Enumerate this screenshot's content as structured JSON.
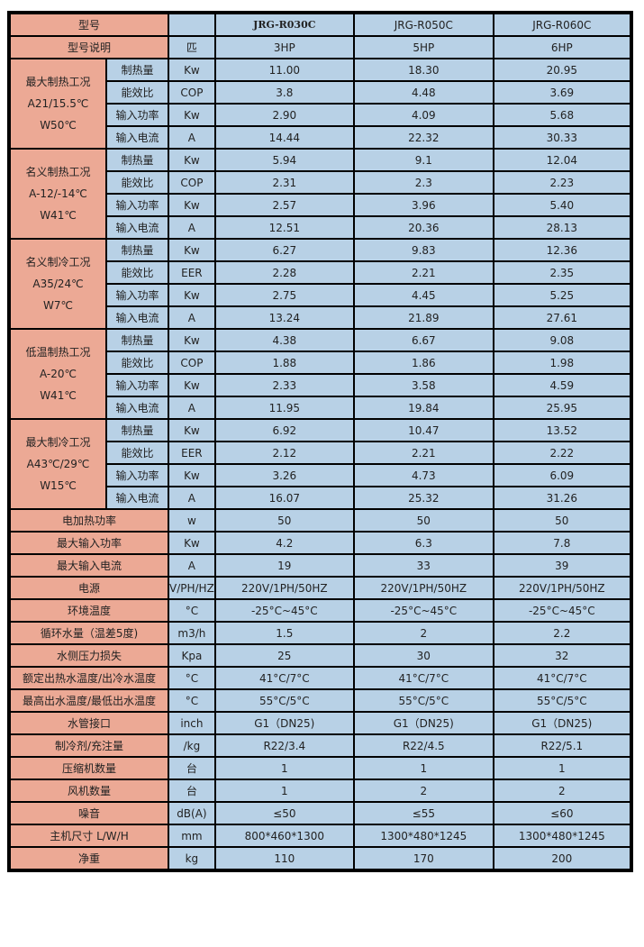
{
  "header": {
    "label": "型号",
    "unit": "",
    "models": [
      "JRG-R030C",
      "JRG-R050C",
      "JRG-R060C"
    ]
  },
  "desc": {
    "label": "型号说明",
    "unit": "匹",
    "values": [
      "3HP",
      "5HP",
      "6HP"
    ]
  },
  "groups": [
    {
      "lines": [
        "最大制热工况",
        "A21/15.5℃",
        "W50℃"
      ],
      "rows": [
        {
          "label": "制热量",
          "unit": "Kw",
          "values": [
            "11.00",
            "18.30",
            "20.95"
          ]
        },
        {
          "label": "能效比",
          "unit": "COP",
          "values": [
            "3.8",
            "4.48",
            "3.69"
          ]
        },
        {
          "label": "输入功率",
          "unit": "Kw",
          "values": [
            "2.90",
            "4.09",
            "5.68"
          ]
        },
        {
          "label": "输入电流",
          "unit": "A",
          "values": [
            "14.44",
            "22.32",
            "30.33"
          ]
        }
      ]
    },
    {
      "lines": [
        "名义制热工况",
        "A-12/-14℃",
        "W41℃"
      ],
      "rows": [
        {
          "label": "制热量",
          "unit": "Kw",
          "values": [
            "5.94",
            "9.1",
            "12.04"
          ]
        },
        {
          "label": "能效比",
          "unit": "COP",
          "values": [
            "2.31",
            "2.3",
            "2.23"
          ]
        },
        {
          "label": "输入功率",
          "unit": "Kw",
          "values": [
            "2.57",
            "3.96",
            "5.40"
          ]
        },
        {
          "label": "输入电流",
          "unit": "A",
          "values": [
            "12.51",
            "20.36",
            "28.13"
          ]
        }
      ]
    },
    {
      "lines": [
        "名义制冷工况",
        "A35/24℃",
        "W7℃"
      ],
      "rows": [
        {
          "label": "制热量",
          "unit": "Kw",
          "values": [
            "6.27",
            "9.83",
            "12.36"
          ]
        },
        {
          "label": "能效比",
          "unit": "EER",
          "values": [
            "2.28",
            "2.21",
            "2.35"
          ]
        },
        {
          "label": "输入功率",
          "unit": "Kw",
          "values": [
            "2.75",
            "4.45",
            "5.25"
          ]
        },
        {
          "label": "输入电流",
          "unit": "A",
          "values": [
            "13.24",
            "21.89",
            "27.61"
          ]
        }
      ]
    },
    {
      "lines": [
        "低温制热工况",
        "A-20℃",
        "W41℃"
      ],
      "rows": [
        {
          "label": "制热量",
          "unit": "Kw",
          "values": [
            "4.38",
            "6.67",
            "9.08"
          ]
        },
        {
          "label": "能效比",
          "unit": "COP",
          "values": [
            "1.88",
            "1.86",
            "1.98"
          ]
        },
        {
          "label": "输入功率",
          "unit": "Kw",
          "values": [
            "2.33",
            "3.58",
            "4.59"
          ]
        },
        {
          "label": "输入电流",
          "unit": "A",
          "values": [
            "11.95",
            "19.84",
            "25.95"
          ]
        }
      ]
    },
    {
      "lines": [
        "最大制冷工况",
        "A43℃/29℃",
        "W15℃"
      ],
      "rows": [
        {
          "label": "制热量",
          "unit": "Kw",
          "values": [
            "6.92",
            "10.47",
            "13.52"
          ]
        },
        {
          "label": "能效比",
          "unit": "EER",
          "values": [
            "2.12",
            "2.21",
            "2.22"
          ]
        },
        {
          "label": "输入功率",
          "unit": "Kw",
          "values": [
            "3.26",
            "4.73",
            "6.09"
          ]
        },
        {
          "label": "输入电流",
          "unit": "A",
          "values": [
            "16.07",
            "25.32",
            "31.26"
          ]
        }
      ]
    }
  ],
  "specs": [
    {
      "label": "电加热功率",
      "unit": "w",
      "values": [
        "50",
        "50",
        "50"
      ]
    },
    {
      "label": "最大输入功率",
      "unit": "Kw",
      "values": [
        "4.2",
        "6.3",
        "7.8"
      ]
    },
    {
      "label": "最大输入电流",
      "unit": "A",
      "values": [
        "19",
        "33",
        "39"
      ]
    },
    {
      "label": "电源",
      "unit": "V/PH/HZ",
      "values": [
        "220V/1PH/50HZ",
        "220V/1PH/50HZ",
        "220V/1PH/50HZ"
      ]
    },
    {
      "label": "环境温度",
      "unit": "°C",
      "values": [
        "-25°C~45°C",
        "-25°C~45°C",
        "-25°C~45°C"
      ]
    },
    {
      "label": "循环水量（温差5度)",
      "unit": "m3/h",
      "values": [
        "1.5",
        "2",
        "2.2"
      ]
    },
    {
      "label": "水侧压力损失",
      "unit": "Kpa",
      "values": [
        "25",
        "30",
        "32"
      ]
    },
    {
      "label": "额定出热水温度/出冷水温度",
      "unit": "°C",
      "values": [
        "41°C/7°C",
        "41°C/7°C",
        "41°C/7°C"
      ]
    },
    {
      "label": "最高出水温度/最低出水温度",
      "unit": "°C",
      "values": [
        "55°C/5°C",
        "55°C/5°C",
        "55°C/5°C"
      ]
    },
    {
      "label": "水管接口",
      "unit": "inch",
      "values": [
        "G1（DN25)",
        "G1（DN25)",
        "G1（DN25)"
      ]
    },
    {
      "label": "制冷剂/充注量",
      "unit": "/kg",
      "values": [
        "R22/3.4",
        "R22/4.5",
        "R22/5.1"
      ]
    },
    {
      "label": "压缩机数量",
      "unit": "台",
      "values": [
        "1",
        "1",
        "1"
      ]
    },
    {
      "label": "风机数量",
      "unit": "台",
      "values": [
        "1",
        "2",
        "2"
      ]
    },
    {
      "label": "噪音",
      "unit": "dB(A)",
      "values": [
        "≤50",
        "≤55",
        "≤60"
      ]
    },
    {
      "label": "主机尺寸 L/W/H",
      "unit": "mm",
      "values": [
        "800*460*1300",
        "1300*480*1245",
        "1300*480*1245"
      ]
    },
    {
      "label": "净重",
      "unit": "kg",
      "values": [
        "110",
        "170",
        "200"
      ]
    }
  ],
  "colors": {
    "label_bg": "#eca995",
    "data_bg": "#b8d1e6",
    "border": "#000000"
  }
}
